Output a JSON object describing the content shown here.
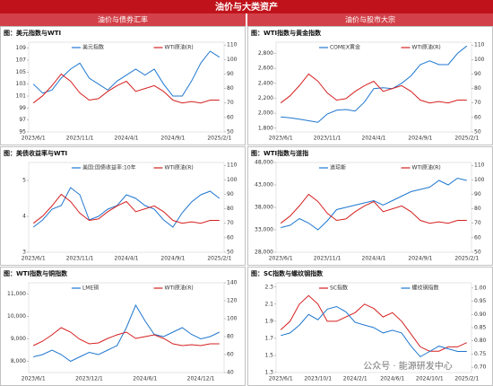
{
  "header": {
    "title": "油价与大类资产",
    "left_section": "油价与债券汇率",
    "right_section": "油价与股市大宗"
  },
  "watermark": "公众号 · 能源研发中心",
  "chart_data": [
    {
      "type": "line",
      "title": "图：美元指数与WTI",
      "categories": [
        "2023/6/1",
        null,
        null,
        null,
        null,
        "2023/11/1",
        null,
        null,
        null,
        null,
        "2024/4/1",
        null,
        null,
        null,
        null,
        "2024/9/1",
        null,
        null,
        null,
        null,
        "2025/2/1"
      ],
      "series": [
        {
          "name": "美元指数",
          "color": "#1f77d0",
          "values": [
            103,
            101.5,
            102,
            104,
            105.5,
            106.5,
            104,
            103,
            102,
            103.5,
            104.5,
            105.5,
            104.5,
            105.5,
            103,
            101,
            101,
            103.5,
            106.5,
            108.5,
            107.5
          ]
        },
        {
          "name": "WTI原油(R)",
          "color": "#d62020",
          "axis": "y2",
          "values": [
            70,
            75,
            82,
            90,
            85,
            77,
            72,
            73,
            78,
            82,
            85,
            78,
            80,
            82,
            78,
            72,
            70,
            71,
            70,
            72,
            72
          ]
        }
      ],
      "ylim": [
        95,
        110
      ],
      "yticks": [
        95,
        97,
        99,
        101,
        103,
        105,
        107,
        109
      ],
      "y2lim": [
        50,
        112
      ],
      "y2ticks": [
        50,
        60,
        70,
        80,
        90,
        100,
        110
      ],
      "grid": false
    },
    {
      "type": "line",
      "title": "图：WTI指数与黄金指数",
      "categories": [
        "2023/6/1",
        null,
        null,
        null,
        null,
        "2023/11/1",
        null,
        null,
        null,
        null,
        "2024/4/1",
        null,
        null,
        null,
        null,
        "2024/9/1",
        null,
        null,
        null,
        null,
        "2025/2/1"
      ],
      "series": [
        {
          "name": "COMEX黄金",
          "color": "#1f77d0",
          "values": [
            1950,
            1940,
            1920,
            1900,
            1880,
            1990,
            2040,
            2050,
            2030,
            2150,
            2330,
            2340,
            2330,
            2400,
            2500,
            2650,
            2700,
            2650,
            2650,
            2800,
            2900
          ]
        },
        {
          "name": "WTI原油(R)",
          "color": "#d62020",
          "axis": "y2",
          "values": [
            70,
            75,
            82,
            90,
            85,
            77,
            72,
            73,
            78,
            82,
            85,
            78,
            80,
            82,
            78,
            72,
            70,
            71,
            70,
            72,
            72
          ]
        }
      ],
      "ylim": [
        1750,
        2950
      ],
      "yticks": [
        {
          "value": 1800,
          "label": "1,800"
        },
        {
          "value": 2000,
          "label": "2,000"
        },
        {
          "value": 2200,
          "label": "2,200"
        },
        {
          "value": 2400,
          "label": "2,400"
        },
        {
          "value": 2600,
          "label": "2,600"
        },
        {
          "value": 2800,
          "label": "2,800"
        }
      ],
      "y2lim": [
        50,
        112
      ],
      "y2ticks": [
        50,
        60,
        70,
        80,
        90,
        100,
        110
      ],
      "grid": false
    },
    {
      "type": "line",
      "title": "图：美债收益率与WTI",
      "categories": [
        "2023/6/1",
        null,
        null,
        null,
        null,
        "2023/11/1",
        null,
        null,
        null,
        null,
        "2024/4/1",
        null,
        null,
        null,
        null,
        "2024/9/1",
        null,
        null,
        null,
        null,
        "2025/2/1"
      ],
      "series": [
        {
          "name": "美国:国债收益率:10年",
          "color": "#1f77d0",
          "values": [
            3.7,
            3.9,
            4.2,
            4.3,
            4.8,
            4.6,
            3.9,
            4.0,
            4.2,
            4.3,
            4.6,
            4.5,
            4.3,
            4.2,
            3.9,
            3.7,
            4.1,
            4.4,
            4.6,
            4.7,
            4.5
          ]
        },
        {
          "name": "WTI原油(R)",
          "color": "#d62020",
          "axis": "y2",
          "values": [
            70,
            75,
            82,
            90,
            85,
            77,
            72,
            73,
            78,
            82,
            85,
            78,
            80,
            82,
            78,
            72,
            70,
            71,
            70,
            72,
            72
          ]
        }
      ],
      "ylim": [
        3,
        5.5
      ],
      "yticks": [
        3,
        4,
        5
      ],
      "y2lim": [
        50,
        112
      ],
      "y2ticks": [
        50,
        60,
        70,
        80,
        90,
        100,
        110
      ],
      "grid": false
    },
    {
      "type": "line",
      "title": "图：WTI指数与道指",
      "categories": [
        "2023/6/1",
        null,
        null,
        null,
        null,
        "2023/11/1",
        null,
        null,
        null,
        null,
        "2024/4/1",
        null,
        null,
        null,
        null,
        "2024/9/1",
        null,
        null,
        null,
        null,
        "2025/2/1"
      ],
      "series": [
        {
          "name": "道琼斯",
          "color": "#1f77d0",
          "values": [
            33500,
            34000,
            35500,
            34500,
            33000,
            35000,
            37500,
            38000,
            38500,
            39000,
            39500,
            38500,
            39500,
            40500,
            41500,
            42000,
            42500,
            44000,
            43000,
            44500,
            44000
          ]
        },
        {
          "name": "WTI原油(R)",
          "color": "#d62020",
          "axis": "y2",
          "values": [
            70,
            75,
            82,
            90,
            85,
            77,
            72,
            73,
            78,
            82,
            85,
            78,
            80,
            82,
            78,
            72,
            70,
            71,
            70,
            72,
            72
          ]
        }
      ],
      "ylim": [
        28000,
        48000
      ],
      "yticks": [
        {
          "value": 28000,
          "label": "28,000"
        },
        {
          "value": 33000,
          "label": "33,000"
        },
        {
          "value": 38000,
          "label": "38,000"
        },
        {
          "value": 43000,
          "label": "43,000"
        },
        {
          "value": 48000,
          "label": "48,000"
        }
      ],
      "y2lim": [
        50,
        112
      ],
      "y2ticks": [
        50,
        60,
        70,
        80,
        90,
        100,
        110
      ],
      "grid": false
    },
    {
      "type": "line",
      "title": "图：WTI指数与铜指数",
      "categories": [
        "2023/6/1",
        null,
        null,
        null,
        null,
        null,
        "2023/12/1",
        null,
        null,
        null,
        null,
        null,
        "2024/6/1",
        null,
        null,
        null,
        null,
        null,
        "2024/12/1",
        null,
        null
      ],
      "series": [
        {
          "name": "LME铜",
          "color": "#1f77d0",
          "values": [
            8200,
            8300,
            8500,
            8300,
            8000,
            8200,
            8400,
            8300,
            8500,
            8700,
            9500,
            10500,
            9800,
            9200,
            9100,
            9300,
            9500,
            9200,
            9000,
            9100,
            9300
          ]
        },
        {
          "name": "WTI原油(R)",
          "color": "#d62020",
          "axis": "y2",
          "values": [
            70,
            75,
            82,
            90,
            85,
            77,
            72,
            73,
            78,
            82,
            85,
            78,
            80,
            82,
            78,
            72,
            70,
            71,
            70,
            72,
            72
          ]
        }
      ],
      "ylim": [
        7500,
        11500
      ],
      "yticks": [
        {
          "value": 8000,
          "label": "8,000"
        },
        {
          "value": 9000,
          "label": "9,000"
        },
        {
          "value": 10000,
          "label": "10,000"
        },
        {
          "value": 11000,
          "label": "11,000"
        }
      ],
      "y2lim": [
        40,
        140
      ],
      "y2ticks": [
        40,
        60,
        80,
        100,
        120,
        140
      ],
      "grid": false
    },
    {
      "type": "line",
      "title": "图：SC指数与螺纹钢指数",
      "categories": [
        "2023/6/1",
        null,
        null,
        null,
        "2023/10/1",
        null,
        null,
        null,
        "2024/2/1",
        null,
        null,
        null,
        "2024/6/1",
        null,
        null,
        null,
        "2024/10/1",
        null,
        null,
        null,
        "2025/2/1"
      ],
      "series": [
        {
          "name": "SC指数",
          "color": "#d62020",
          "values": [
            1.8,
            1.9,
            2.1,
            2.2,
            2.1,
            1.9,
            1.9,
            1.95,
            2.0,
            2.1,
            2.05,
            1.95,
            2.0,
            1.9,
            1.75,
            1.6,
            1.55,
            1.55,
            1.6,
            1.6,
            1.65
          ]
        },
        {
          "name": "螺纹钢指数",
          "color": "#1f77d0",
          "axis": "y2",
          "values": [
            0.82,
            0.83,
            0.86,
            0.9,
            0.88,
            0.92,
            0.93,
            0.91,
            0.87,
            0.86,
            0.85,
            0.83,
            0.84,
            0.83,
            0.78,
            0.74,
            0.76,
            0.78,
            0.77,
            0.76,
            0.76
          ]
        }
      ],
      "ylim": [
        1.3,
        2.35
      ],
      "yticks": [
        1.3,
        1.5,
        1.7,
        1.9,
        2.1,
        2.3
      ],
      "y2lim": [
        0.68,
        1.02
      ],
      "y2ticks": [
        {
          "value": 0.7,
          "label": "0.70"
        },
        {
          "value": 0.75,
          "label": "0.75"
        },
        {
          "value": 0.8,
          "label": "0.80"
        },
        {
          "value": 0.85,
          "label": "0.85"
        },
        {
          "value": 0.9,
          "label": "0.90"
        },
        {
          "value": 0.95,
          "label": "0.95"
        },
        {
          "value": 1,
          "label": "1.00"
        }
      ],
      "grid": false
    }
  ]
}
